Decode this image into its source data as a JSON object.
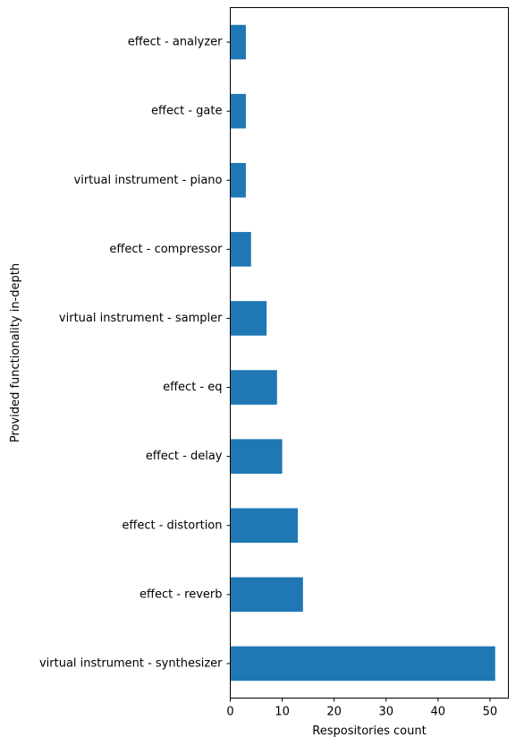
{
  "chart_data": {
    "type": "bar",
    "orientation": "horizontal",
    "categories": [
      "virtual instrument - synthesizer",
      "effect - reverb",
      "effect - distortion",
      "effect - delay",
      "effect - eq",
      "virtual instrument - sampler",
      "effect - compressor",
      "virtual instrument - piano",
      "effect - gate",
      "effect - analyzer"
    ],
    "values": [
      51,
      14,
      13,
      10,
      9,
      7,
      4,
      3,
      3,
      3
    ],
    "xlabel": "Respositories count",
    "ylabel": "Provided functionality in-depth",
    "xlim": [
      0,
      53.55
    ],
    "xticks": [
      0,
      10,
      20,
      30,
      40,
      50
    ],
    "bar_color": "#1f77b4",
    "grid": false
  }
}
